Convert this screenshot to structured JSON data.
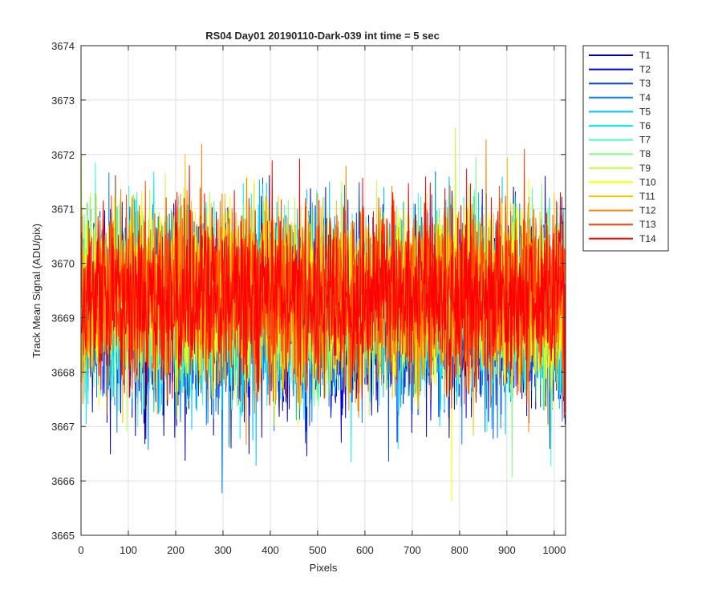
{
  "chart_data": {
    "type": "line",
    "title": "RS04 Day01 20190110-Dark-039 int time = 5 sec",
    "xlabel": "Pixels",
    "ylabel": "Track Mean Signal (ADU/pix)",
    "xlim": [
      0,
      1024
    ],
    "ylim": [
      3665,
      3674
    ],
    "xticks": [
      0,
      100,
      200,
      300,
      400,
      500,
      600,
      700,
      800,
      900,
      1000
    ],
    "yticks": [
      3665,
      3666,
      3667,
      3668,
      3669,
      3670,
      3671,
      3672,
      3673,
      3674
    ],
    "grid": true,
    "legend_position": "outside-right",
    "pixel_count": 1024,
    "series": [
      {
        "name": "T1",
        "color": "#0000B0",
        "mean": 3669.0,
        "noise": 0.85
      },
      {
        "name": "T2",
        "color": "#0000E6",
        "mean": 3669.0,
        "noise": 0.85
      },
      {
        "name": "T3",
        "color": "#0040FF",
        "mean": 3669.1,
        "noise": 0.85
      },
      {
        "name": "T4",
        "color": "#0080FF",
        "mean": 3669.1,
        "noise": 0.8
      },
      {
        "name": "T5",
        "color": "#00C0FF",
        "mean": 3669.2,
        "noise": 0.8
      },
      {
        "name": "T6",
        "color": "#00F0FF",
        "mean": 3669.2,
        "noise": 0.8
      },
      {
        "name": "T7",
        "color": "#40FFC0",
        "mean": 3669.3,
        "noise": 0.8
      },
      {
        "name": "T8",
        "color": "#80FF80",
        "mean": 3669.3,
        "noise": 0.8
      },
      {
        "name": "T9",
        "color": "#C0FF40",
        "mean": 3669.4,
        "noise": 0.8
      },
      {
        "name": "T10",
        "color": "#FFFF00",
        "mean": 3669.4,
        "noise": 0.8
      },
      {
        "name": "T11",
        "color": "#FFC000",
        "mean": 3669.4,
        "noise": 0.8
      },
      {
        "name": "T12",
        "color": "#FF8000",
        "mean": 3669.4,
        "noise": 0.8
      },
      {
        "name": "T13",
        "color": "#FF4000",
        "mean": 3669.4,
        "noise": 0.8
      },
      {
        "name": "T14",
        "color": "#FF0000",
        "mean": 3669.4,
        "noise": 0.8
      }
    ]
  }
}
